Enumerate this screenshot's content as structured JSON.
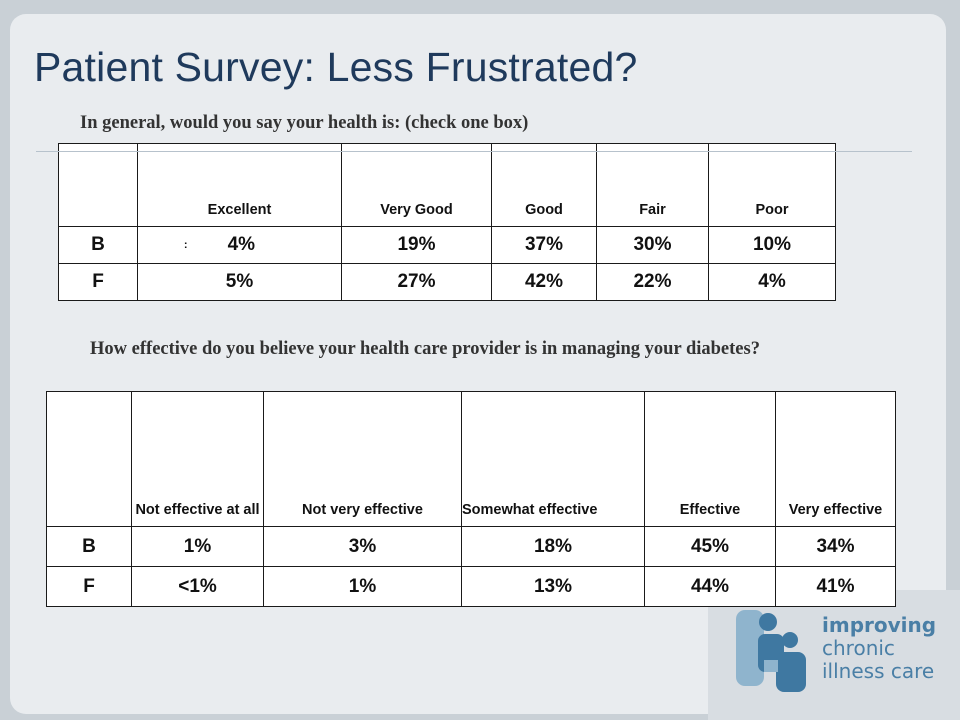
{
  "slide": {
    "title": "Patient Survey: Less Frustrated?"
  },
  "health": {
    "question": "In general, would you say your health is: (check one box)",
    "columns": [
      "",
      "Excellent",
      "Very Good",
      "Good",
      "Fair",
      "Poor"
    ],
    "note": ":",
    "rows": [
      {
        "label": "B",
        "values": [
          "4%",
          "19%",
          "37%",
          "30%",
          "10%"
        ]
      },
      {
        "label": "F",
        "values": [
          "5%",
          "27%",
          "42%",
          "22%",
          "4%"
        ]
      }
    ]
  },
  "effectiveness": {
    "question": "How effective do you believe your health care provider is in managing your diabetes?",
    "columns": [
      "",
      "Not effective at all",
      "Not very effective",
      "Somewhat effective",
      "Effective",
      "Very effective"
    ],
    "rows": [
      {
        "label": "B",
        "values": [
          "1%",
          "3%",
          "18%",
          "45%",
          "34%"
        ]
      },
      {
        "label": "F",
        "values": [
          "<1%",
          "1%",
          "13%",
          "44%",
          "41%"
        ]
      }
    ]
  },
  "logo": {
    "line1": "improving",
    "line2": "chronic",
    "line3": "illness care",
    "icon": "people-icon",
    "colors": {
      "dark": "#3f78a1",
      "light": "#8fb4cd"
    }
  }
}
